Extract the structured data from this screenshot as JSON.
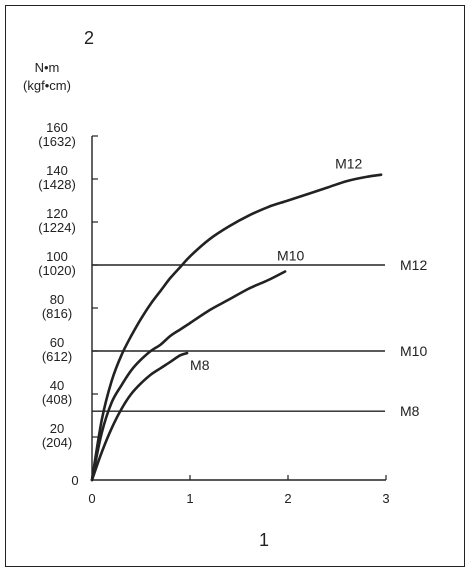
{
  "figure": {
    "corner_label": "2",
    "x_caption": "1"
  },
  "chart_data": {
    "type": "line",
    "x": [
      0,
      0.1,
      0.2,
      0.3,
      0.4,
      0.5,
      0.6,
      0.7,
      0.8,
      0.9,
      1.0,
      1.2,
      1.4,
      1.6,
      1.8,
      2.0,
      2.2,
      2.4,
      2.6,
      2.8,
      2.95
    ],
    "series": [
      {
        "name": "M12",
        "color": "#222222",
        "x": [
          0,
          0.1,
          0.2,
          0.3,
          0.4,
          0.5,
          0.6,
          0.7,
          0.8,
          0.9,
          1.0,
          1.2,
          1.4,
          1.6,
          1.8,
          2.0,
          2.2,
          2.4,
          2.6,
          2.8,
          2.95
        ],
        "y": [
          0,
          28,
          46,
          58,
          67,
          75,
          82,
          88,
          94,
          99,
          104,
          112,
          118,
          123,
          127,
          130,
          133,
          136,
          139,
          141,
          142
        ]
      },
      {
        "name": "M10",
        "color": "#222222",
        "x": [
          0,
          0.1,
          0.2,
          0.3,
          0.4,
          0.5,
          0.6,
          0.7,
          0.8,
          0.9,
          1.0,
          1.2,
          1.4,
          1.6,
          1.8,
          1.97
        ],
        "y": [
          0,
          22,
          36,
          44,
          51,
          56,
          60,
          63,
          67,
          70,
          73,
          79,
          84,
          89,
          93,
          97
        ]
      },
      {
        "name": "M8",
        "color": "#222222",
        "x": [
          0,
          0.1,
          0.2,
          0.3,
          0.4,
          0.5,
          0.6,
          0.7,
          0.8,
          0.9,
          0.97
        ],
        "y": [
          0,
          13,
          24,
          33,
          40,
          45,
          49,
          52,
          55,
          58,
          59
        ]
      }
    ],
    "reference_lines": [
      {
        "label": "M12",
        "y": 100
      },
      {
        "label": "M10",
        "y": 60
      },
      {
        "label": "M8",
        "y": 32
      }
    ],
    "y_unit_label": [
      "N•m",
      "(kgf•cm)"
    ],
    "y_ticks": [
      {
        "value": 0,
        "labels": [
          "0"
        ]
      },
      {
        "value": 20,
        "labels": [
          "20",
          "(204)"
        ]
      },
      {
        "value": 40,
        "labels": [
          "40",
          "(408)"
        ]
      },
      {
        "value": 60,
        "labels": [
          "60",
          "(612)"
        ]
      },
      {
        "value": 80,
        "labels": [
          "80",
          "(816)"
        ]
      },
      {
        "value": 100,
        "labels": [
          "100",
          "(1020)"
        ]
      },
      {
        "value": 120,
        "labels": [
          "120",
          "(1224)"
        ]
      },
      {
        "value": 140,
        "labels": [
          "140",
          "(1428)"
        ]
      },
      {
        "value": 160,
        "labels": [
          "160",
          "(1632)"
        ]
      }
    ],
    "x_ticks": [
      {
        "value": 0,
        "label": "0"
      },
      {
        "value": 1,
        "label": "1"
      },
      {
        "value": 2,
        "label": "2"
      },
      {
        "value": 3,
        "label": "3"
      }
    ],
    "xlim": [
      0,
      3
    ],
    "ylim": [
      0,
      160
    ],
    "grid": false,
    "line_color": "#222222"
  }
}
